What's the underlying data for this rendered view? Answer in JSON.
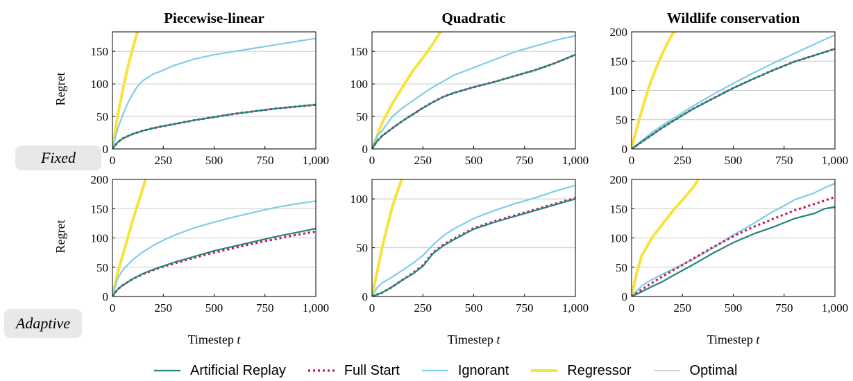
{
  "row_labels": [
    "Fixed",
    "Adaptive"
  ],
  "legend": [
    {
      "name": "Artificial Replay",
      "color": "#21847b",
      "dash": "",
      "width": 2.2
    },
    {
      "name": "Full Start",
      "color": "#c0185a",
      "dash": "3,4",
      "width": 3.2
    },
    {
      "name": "Ignorant",
      "color": "#7fcde8",
      "dash": "",
      "width": 2.2
    },
    {
      "name": "Regressor",
      "color": "#f6e43a",
      "dash": "",
      "width": 4
    },
    {
      "name": "Optimal",
      "color": "#b5b5b5",
      "dash": "",
      "width": 1.2
    }
  ],
  "chart_data": [
    {
      "type": "line",
      "title": "Piecewise-linear",
      "xlabel": "",
      "ylabel": "Regret",
      "xlim": [
        0,
        1000
      ],
      "ylim": [
        0,
        180
      ],
      "xticks": [
        0,
        250,
        500,
        750,
        1000
      ],
      "xtick_labels": [
        "0",
        "250",
        "500",
        "750",
        "1,000"
      ],
      "yticks": [
        0,
        50,
        100,
        150
      ],
      "ytick_labels": [
        "0",
        "50",
        "100",
        "150"
      ],
      "grid": "horizontal",
      "series": [
        {
          "name": "Optimal",
          "x": [
            0,
            1000
          ],
          "y": [
            0,
            0
          ]
        },
        {
          "name": "Regressor",
          "x": [
            0,
            25,
            50,
            75,
            100,
            125
          ],
          "y": [
            0,
            50,
            90,
            125,
            155,
            182
          ]
        },
        {
          "name": "Ignorant",
          "x": [
            0,
            25,
            50,
            75,
            100,
            125,
            150,
            200,
            250,
            300,
            400,
            500,
            600,
            700,
            800,
            900,
            1000
          ],
          "y": [
            0,
            30,
            52,
            70,
            85,
            97,
            105,
            115,
            121,
            128,
            138,
            145,
            150,
            155,
            160,
            165,
            170
          ]
        },
        {
          "name": "Full Start",
          "x": [
            0,
            25,
            50,
            100,
            150,
            200,
            250,
            300,
            400,
            500,
            600,
            700,
            800,
            900,
            1000
          ],
          "y": [
            0,
            10,
            16,
            23,
            28,
            32,
            35,
            38,
            44,
            49,
            54,
            58,
            62,
            65,
            68
          ]
        },
        {
          "name": "Artificial Replay",
          "x": [
            0,
            25,
            50,
            100,
            150,
            200,
            250,
            300,
            400,
            500,
            600,
            700,
            800,
            900,
            1000
          ],
          "y": [
            0,
            10,
            16,
            23,
            28,
            32,
            35,
            38,
            44,
            49,
            54,
            58,
            62,
            65,
            68
          ]
        }
      ]
    },
    {
      "type": "line",
      "title": "Quadratic",
      "xlabel": "",
      "ylabel": "",
      "xlim": [
        0,
        1000
      ],
      "ylim": [
        0,
        180
      ],
      "xticks": [
        0,
        250,
        500,
        750,
        1000
      ],
      "xtick_labels": [
        "0",
        "250",
        "500",
        "750",
        "1,000"
      ],
      "yticks": [
        0,
        50,
        100,
        150
      ],
      "ytick_labels": [
        "0",
        "50",
        "100",
        "150"
      ],
      "grid": "horizontal",
      "series": [
        {
          "name": "Optimal",
          "x": [
            0,
            1000
          ],
          "y": [
            0,
            0
          ]
        },
        {
          "name": "Regressor",
          "x": [
            0,
            50,
            100,
            150,
            200,
            250,
            300,
            340
          ],
          "y": [
            0,
            40,
            70,
            95,
            120,
            140,
            162,
            182
          ]
        },
        {
          "name": "Ignorant",
          "x": [
            0,
            25,
            50,
            100,
            150,
            200,
            250,
            300,
            400,
            500,
            600,
            700,
            800,
            900,
            1000
          ],
          "y": [
            0,
            20,
            28,
            50,
            63,
            74,
            85,
            95,
            113,
            125,
            137,
            149,
            158,
            167,
            174
          ]
        },
        {
          "name": "Full Start",
          "x": [
            0,
            25,
            50,
            100,
            150,
            200,
            250,
            300,
            350,
            400,
            500,
            600,
            700,
            800,
            900,
            1000
          ],
          "y": [
            0,
            12,
            20,
            32,
            43,
            53,
            63,
            72,
            80,
            86,
            95,
            103,
            112,
            121,
            132,
            145
          ]
        },
        {
          "name": "Artificial Replay",
          "x": [
            0,
            25,
            50,
            100,
            150,
            200,
            250,
            300,
            350,
            400,
            500,
            600,
            700,
            800,
            900,
            1000
          ],
          "y": [
            0,
            12,
            20,
            32,
            43,
            53,
            63,
            72,
            80,
            86,
            95,
            103,
            112,
            121,
            132,
            145
          ]
        }
      ]
    },
    {
      "type": "line",
      "title": "Wildlife conservation",
      "xlabel": "",
      "ylabel": "",
      "xlim": [
        0,
        1000
      ],
      "ylim": [
        0,
        200
      ],
      "xticks": [
        0,
        250,
        500,
        750,
        1000
      ],
      "xtick_labels": [
        "0",
        "250",
        "500",
        "750",
        "1,000"
      ],
      "yticks": [
        0,
        50,
        100,
        150,
        200
      ],
      "ytick_labels": [
        "0",
        "50",
        "100",
        "150",
        "200"
      ],
      "grid": "horizontal",
      "series": [
        {
          "name": "Optimal",
          "x": [
            0,
            1000
          ],
          "y": [
            0,
            0
          ]
        },
        {
          "name": "Regressor",
          "x": [
            0,
            25,
            50,
            75,
            100,
            125,
            150,
            175,
            200,
            215
          ],
          "y": [
            0,
            35,
            65,
            95,
            120,
            142,
            162,
            180,
            196,
            202
          ]
        },
        {
          "name": "Ignorant",
          "x": [
            0,
            50,
            100,
            150,
            200,
            300,
            400,
            500,
            600,
            700,
            800,
            900,
            1000
          ],
          "y": [
            0,
            14,
            28,
            40,
            51,
            73,
            93,
            112,
            130,
            147,
            163,
            179,
            195
          ]
        },
        {
          "name": "Full Start",
          "x": [
            0,
            50,
            100,
            150,
            200,
            300,
            400,
            500,
            600,
            700,
            800,
            900,
            1000
          ],
          "y": [
            0,
            12,
            24,
            36,
            47,
            68,
            86,
            104,
            120,
            135,
            149,
            160,
            171
          ]
        },
        {
          "name": "Artificial Replay",
          "x": [
            0,
            50,
            100,
            150,
            200,
            300,
            400,
            500,
            600,
            700,
            800,
            900,
            1000
          ],
          "y": [
            0,
            12,
            24,
            36,
            47,
            68,
            86,
            104,
            120,
            135,
            149,
            160,
            171
          ]
        }
      ]
    },
    {
      "type": "line",
      "title": "",
      "xlabel": "Timestep t",
      "ylabel": "Regret",
      "xlim": [
        0,
        1000
      ],
      "ylim": [
        0,
        200
      ],
      "xticks": [
        0,
        250,
        500,
        750,
        1000
      ],
      "xtick_labels": [
        "0",
        "250",
        "500",
        "750",
        "1,000"
      ],
      "yticks": [
        0,
        50,
        100,
        150,
        200
      ],
      "ytick_labels": [
        "0",
        "50",
        "100",
        "150",
        "200"
      ],
      "grid": "horizontal",
      "series": [
        {
          "name": "Optimal",
          "x": [
            0,
            1000
          ],
          "y": [
            0,
            0
          ]
        },
        {
          "name": "Regressor",
          "x": [
            0,
            25,
            50,
            75,
            100,
            125,
            150,
            165
          ],
          "y": [
            0,
            40,
            70,
            100,
            130,
            158,
            185,
            202
          ]
        },
        {
          "name": "Ignorant",
          "x": [
            0,
            25,
            50,
            100,
            150,
            200,
            250,
            300,
            400,
            500,
            600,
            700,
            800,
            900,
            1000
          ],
          "y": [
            0,
            30,
            45,
            63,
            76,
            87,
            96,
            104,
            117,
            127,
            136,
            144,
            152,
            158,
            163
          ]
        },
        {
          "name": "Full Start",
          "x": [
            0,
            25,
            50,
            100,
            150,
            200,
            250,
            300,
            400,
            500,
            600,
            700,
            800,
            900,
            1000
          ],
          "y": [
            0,
            12,
            19,
            30,
            38,
            45,
            51,
            56,
            66,
            75,
            83,
            91,
            98,
            105,
            111
          ]
        },
        {
          "name": "Artificial Replay",
          "x": [
            0,
            25,
            50,
            100,
            150,
            200,
            250,
            300,
            400,
            500,
            600,
            700,
            800,
            900,
            1000
          ],
          "y": [
            0,
            12,
            19,
            30,
            39,
            46,
            52,
            58,
            68,
            78,
            86,
            94,
            102,
            109,
            116
          ]
        }
      ]
    },
    {
      "type": "line",
      "title": "",
      "xlabel": "Timestep t",
      "ylabel": "",
      "xlim": [
        0,
        1000
      ],
      "ylim": [
        0,
        120
      ],
      "xticks": [
        0,
        250,
        500,
        750,
        1000
      ],
      "xtick_labels": [
        "0",
        "250",
        "500",
        "750",
        "1,000"
      ],
      "yticks": [
        0,
        50,
        100
      ],
      "ytick_labels": [
        "0",
        "50",
        "100"
      ],
      "grid": "horizontal",
      "series": [
        {
          "name": "Optimal",
          "x": [
            0,
            1000
          ],
          "y": [
            0,
            0
          ]
        },
        {
          "name": "Regressor",
          "x": [
            0,
            25,
            50,
            75,
            100,
            125,
            150
          ],
          "y": [
            0,
            25,
            50,
            72,
            92,
            108,
            122
          ]
        },
        {
          "name": "Ignorant",
          "x": [
            0,
            25,
            50,
            100,
            150,
            200,
            250,
            300,
            350,
            400,
            500,
            600,
            700,
            800,
            900,
            1000
          ],
          "y": [
            0,
            9,
            14,
            20,
            27,
            34,
            42,
            53,
            62,
            69,
            80,
            88,
            95,
            101,
            108,
            114
          ]
        },
        {
          "name": "Full Start",
          "x": [
            0,
            25,
            50,
            100,
            150,
            200,
            250,
            300,
            350,
            400,
            500,
            600,
            700,
            800,
            900,
            1000
          ],
          "y": [
            0,
            2,
            4,
            10,
            17,
            24,
            32,
            45,
            53,
            59,
            70,
            77,
            83,
            89,
            95,
            101
          ]
        },
        {
          "name": "Artificial Replay",
          "x": [
            0,
            25,
            50,
            100,
            150,
            200,
            250,
            300,
            350,
            400,
            500,
            600,
            700,
            800,
            900,
            1000
          ],
          "y": [
            0,
            2,
            4,
            10,
            17,
            23,
            31,
            44,
            52,
            58,
            69,
            76,
            82,
            88,
            94,
            100
          ]
        }
      ]
    },
    {
      "type": "line",
      "title": "",
      "xlabel": "Timestep t",
      "ylabel": "",
      "xlim": [
        0,
        1000
      ],
      "ylim": [
        0,
        200
      ],
      "xticks": [
        0,
        250,
        500,
        750,
        1000
      ],
      "xtick_labels": [
        "0",
        "250",
        "500",
        "750",
        "1,000"
      ],
      "yticks": [
        0,
        50,
        100,
        150,
        200
      ],
      "ytick_labels": [
        "0",
        "50",
        "100",
        "150",
        "200"
      ],
      "grid": "horizontal",
      "series": [
        {
          "name": "Optimal",
          "x": [
            0,
            1000
          ],
          "y": [
            0,
            0
          ]
        },
        {
          "name": "Regressor",
          "x": [
            0,
            25,
            50,
            75,
            100,
            150,
            200,
            250,
            300,
            325
          ],
          "y": [
            0,
            40,
            70,
            85,
            100,
            123,
            145,
            165,
            185,
            198
          ]
        },
        {
          "name": "Ignorant",
          "x": [
            0,
            50,
            100,
            150,
            200,
            300,
            400,
            500,
            600,
            700,
            750,
            800,
            900,
            950,
            1000
          ],
          "y": [
            0,
            18,
            29,
            38,
            46,
            63,
            83,
            105,
            125,
            146,
            155,
            165,
            177,
            186,
            193
          ]
        },
        {
          "name": "Full Start",
          "x": [
            0,
            50,
            100,
            150,
            200,
            300,
            400,
            500,
            600,
            700,
            800,
            900,
            1000
          ],
          "y": [
            0,
            12,
            23,
            34,
            44,
            64,
            84,
            103,
            119,
            133,
            147,
            158,
            170
          ]
        },
        {
          "name": "Artificial Replay",
          "x": [
            0,
            50,
            100,
            150,
            200,
            300,
            400,
            500,
            600,
            700,
            800,
            900,
            950,
            1000
          ],
          "y": [
            0,
            8,
            17,
            25,
            35,
            54,
            74,
            92,
            107,
            119,
            133,
            142,
            150,
            153
          ]
        }
      ]
    }
  ]
}
